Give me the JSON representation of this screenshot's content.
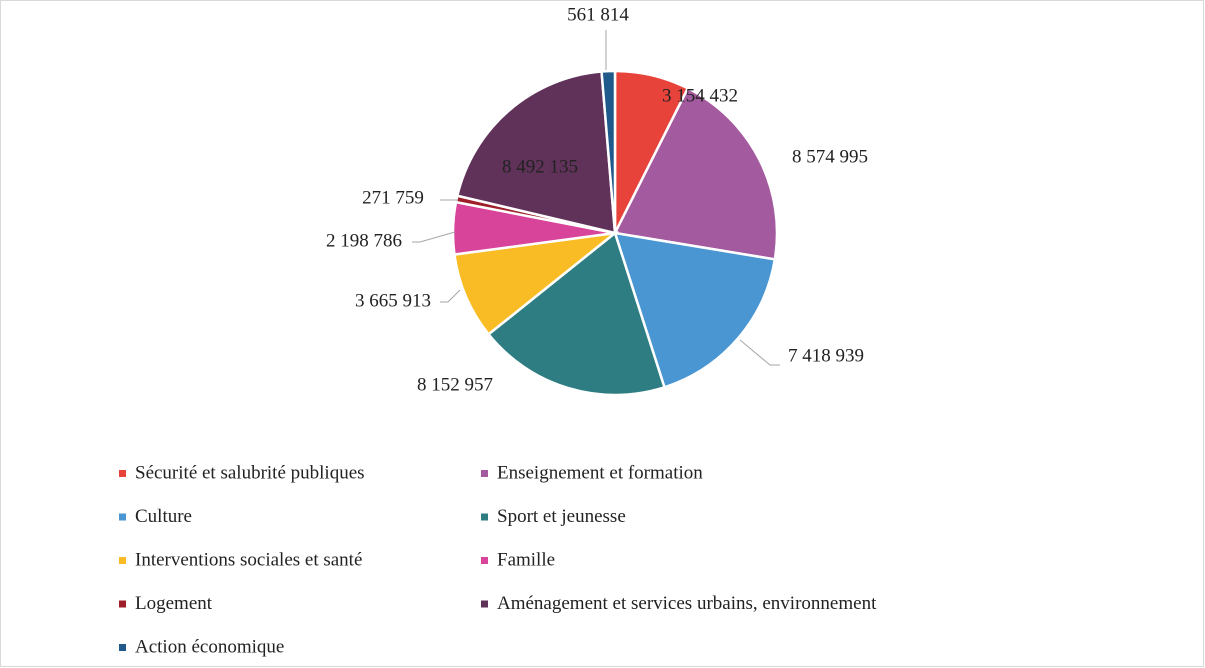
{
  "chart_data": {
    "type": "pie",
    "categories": [
      "Sécurité et salubrité publiques",
      "Enseignement et formation",
      "Culture",
      "Sport et jeunesse",
      "Interventions sociales et santé",
      "Famille",
      "Logement",
      "Aménagement et services urbains, environnement",
      "Action économique"
    ],
    "values": [
      3154432,
      8574995,
      7418939,
      8152957,
      3665913,
      2198786,
      271759,
      8492135,
      561814
    ],
    "value_labels": [
      "3 154 432",
      "8 574 995",
      "7 418 939",
      "8 152 957",
      "3 665 913",
      "2 198 786",
      "271 759",
      "8 492 135",
      "561 814"
    ],
    "colors": [
      "#e8433b",
      "#a45a9e",
      "#4a96d2",
      "#2e7d82",
      "#f9bc24",
      "#d8449a",
      "#9e1f2a",
      "#60325a",
      "#1f5a8a"
    ],
    "legend": "bottom"
  }
}
